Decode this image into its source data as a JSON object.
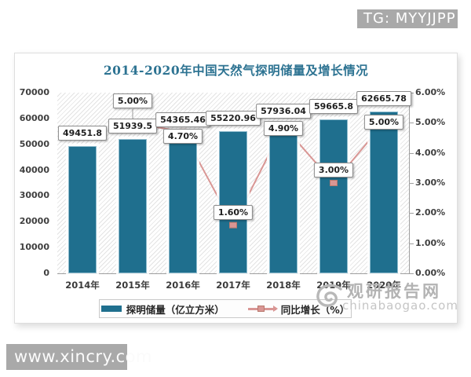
{
  "watermarks": {
    "tg_badge": "TG: MYYJJPP",
    "bottom_left_badge": "www.xincry.com",
    "brand_name": "观研报告网",
    "brand_domain": "chinabaogao.com"
  },
  "chart_data": {
    "type": "bar+line",
    "title": "2014-2020年中国天然气探明储量及增长情况",
    "categories": [
      "2014年",
      "2015年",
      "2016年",
      "2017年",
      "2018年",
      "2019年",
      "2020年"
    ],
    "series": [
      {
        "name": "探明储量（亿立方米）",
        "type": "bar",
        "axis": "left",
        "color": "#1f6f8e",
        "values": [
          49451.8,
          51939.5,
          54365.46,
          55220.96,
          57936.04,
          59665.8,
          62665.78
        ],
        "labels": [
          "49451.8",
          "51939.5",
          "54365.46",
          "55220.96",
          "57936.04",
          "59665.8",
          "62665.78"
        ]
      },
      {
        "name": "同比增长（%）",
        "type": "line",
        "axis": "right",
        "color": "#d99694",
        "values": [
          null,
          5.0,
          4.7,
          1.6,
          4.9,
          3.0,
          5.0
        ],
        "labels": [
          null,
          "5.00%",
          "4.70%",
          "1.60%",
          "4.90%",
          "3.00%",
          "5.00%"
        ]
      }
    ],
    "left_axis": {
      "min": 0,
      "max": 70000,
      "step": 10000,
      "ticks": [
        "70000",
        "60000",
        "50000",
        "40000",
        "30000",
        "20000",
        "10000",
        "0"
      ]
    },
    "right_axis": {
      "min": 0,
      "max": 6,
      "step": 1,
      "ticks": [
        "6.00%",
        "5.00%",
        "4.00%",
        "3.00%",
        "2.00%",
        "1.00%",
        "0.00%"
      ]
    },
    "grid": "hatched-plot-background, no gridlines",
    "legend_position": "bottom"
  }
}
